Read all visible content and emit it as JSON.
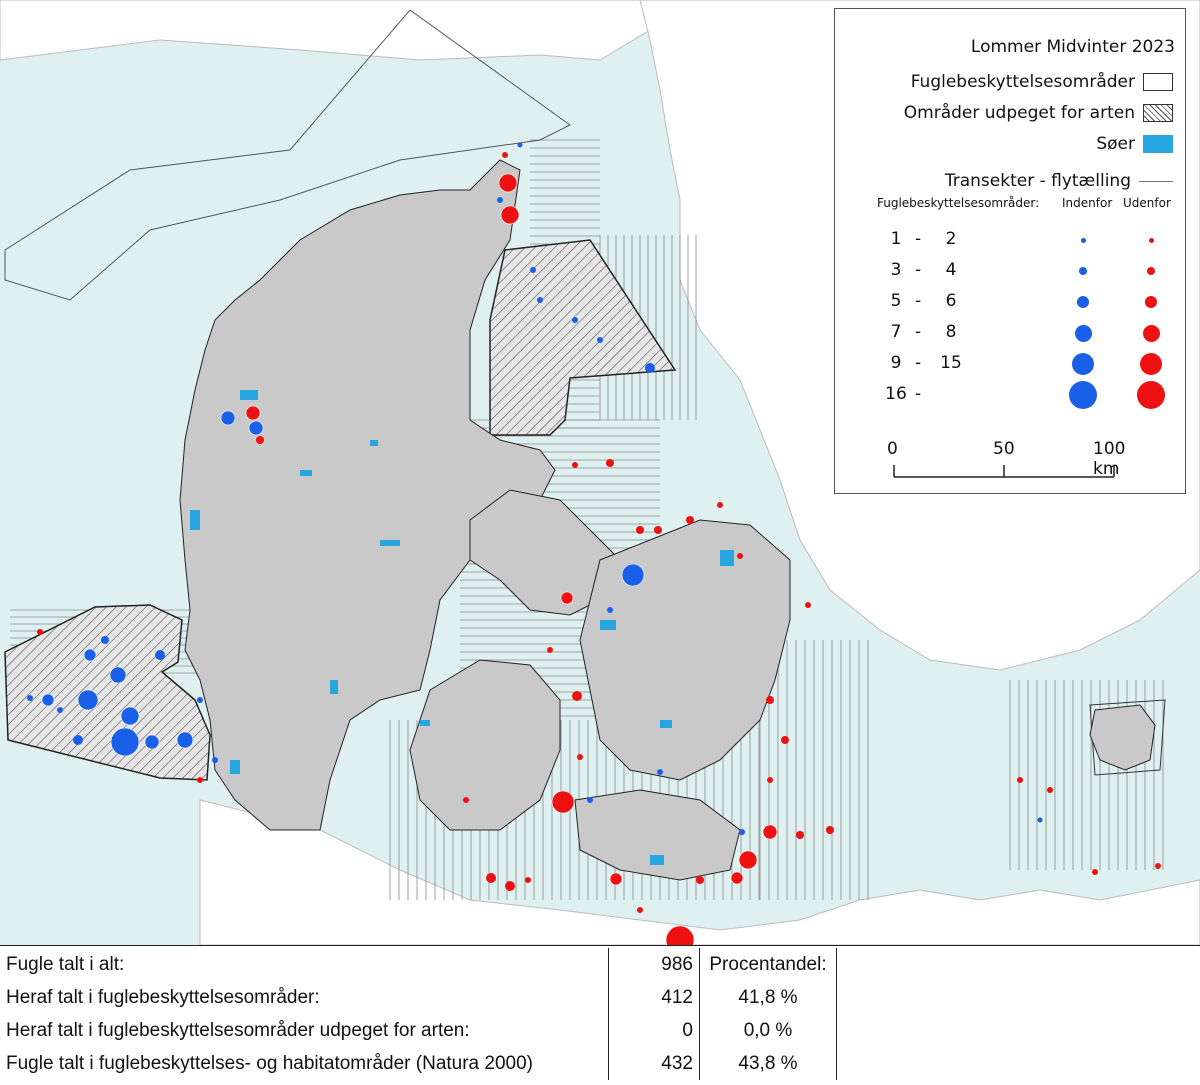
{
  "legend": {
    "title": "Lommer Midvinter 2023",
    "spa_label": "Fuglebeskyttelsesområder",
    "designated_label": "Områder udpeget for arten",
    "lakes_label": "Søer",
    "transects_label": "Transekter - flytælling",
    "size_header": "Fuglebeskyttelsesområder:",
    "inside_label": "Indenfor",
    "outside_label": "Udenfor",
    "classes": [
      {
        "lo": "1",
        "hi": "2"
      },
      {
        "lo": "3",
        "hi": "4"
      },
      {
        "lo": "5",
        "hi": "6"
      },
      {
        "lo": "7",
        "hi": "8"
      },
      {
        "lo": "9",
        "hi": "15"
      },
      {
        "lo": "16",
        "hi": ""
      }
    ],
    "scale": {
      "s0": "0",
      "s1": "50",
      "s2": "100 km"
    },
    "colors": {
      "inside": "#1a5fe8",
      "outside": "#ee1111",
      "lakes": "#27a6df",
      "land": "#c8c9c8",
      "sea": "#dff0f0"
    }
  },
  "stats": {
    "rows": [
      {
        "label": "Fugle talt i alt:",
        "value": "986",
        "pct": "Procentandel:"
      },
      {
        "label": "Heraf talt i fuglebeskyttelsesområder:",
        "value": "412",
        "pct": "41,8 %"
      },
      {
        "label": "Heraf talt i fuglebeskyttelsesområder udpeget for arten:",
        "value": "0",
        "pct": "0,0 %"
      },
      {
        "label": "Fugle talt i fuglebeskyttelses- og habitatområder (Natura 2000)",
        "value": "432",
        "pct": "43,8 %"
      }
    ]
  }
}
